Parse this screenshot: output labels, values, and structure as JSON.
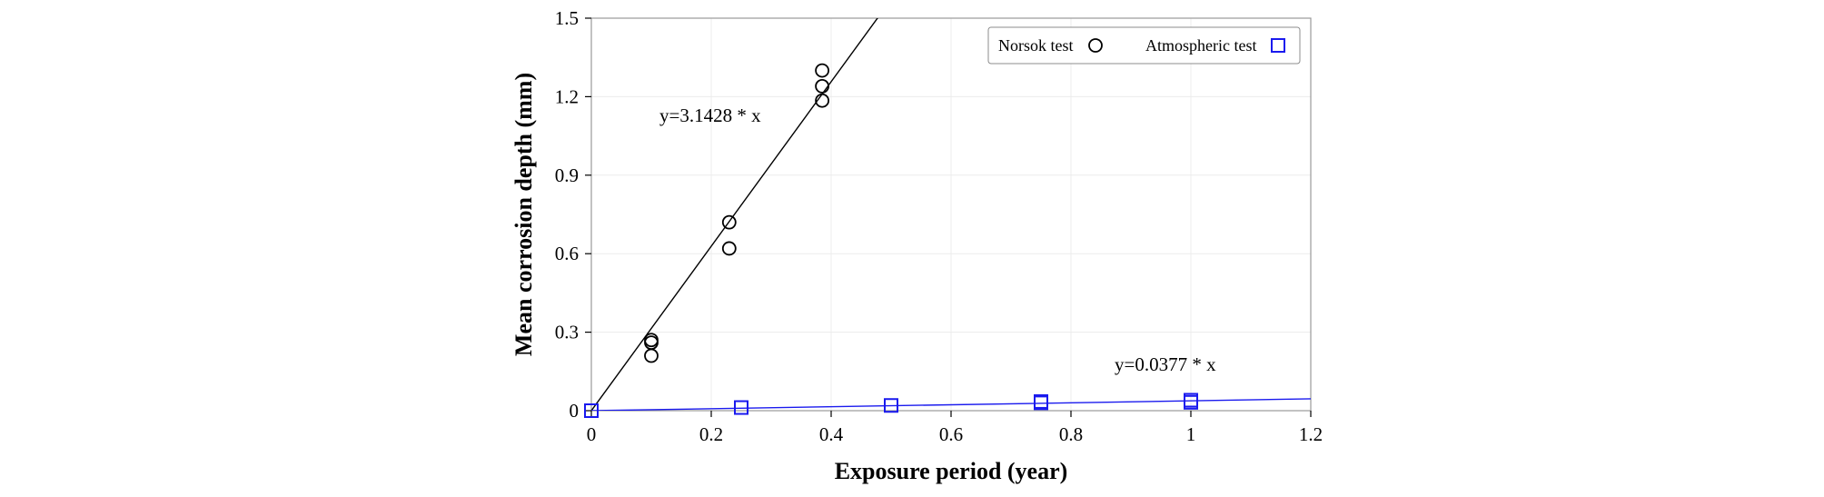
{
  "chart_data": {
    "type": "scatter",
    "xlabel": "Exposure period (year)",
    "ylabel": "Mean corrosion depth (mm)",
    "xlim": [
      0,
      1.2
    ],
    "ylim": [
      0,
      1.5
    ],
    "x_ticks": [
      0,
      0.2,
      0.4,
      0.6,
      0.8,
      1,
      1.2
    ],
    "x_tick_labels": [
      "0",
      "0.2",
      "0.4",
      "0.6",
      "0.8",
      "1",
      "1.2"
    ],
    "y_ticks": [
      0,
      0.3,
      0.6,
      0.9,
      1.2,
      1.5
    ],
    "y_tick_labels": [
      "0",
      "0.3",
      "0.6",
      "0.9",
      "1.2",
      "1.5"
    ],
    "grid": true,
    "legend_position": "top-right",
    "series": [
      {
        "name": "Norsok test",
        "marker": "circle",
        "color": "#000000",
        "points": [
          [
            0.1,
            0.27
          ],
          [
            0.1,
            0.26
          ],
          [
            0.1,
            0.21
          ],
          [
            0.23,
            0.72
          ],
          [
            0.23,
            0.62
          ],
          [
            0.385,
            1.3
          ],
          [
            0.385,
            1.24
          ],
          [
            0.385,
            1.185
          ]
        ],
        "fit": {
          "slope": 3.1428,
          "label": "y=3.1428 * x"
        }
      },
      {
        "name": "Atmospheric test",
        "marker": "square",
        "color": "#1a1aee",
        "points": [
          [
            0,
            0.0
          ],
          [
            0.25,
            0.012
          ],
          [
            0.5,
            0.02
          ],
          [
            0.75,
            0.03
          ],
          [
            0.75,
            0.035
          ],
          [
            1,
            0.032
          ],
          [
            1,
            0.04
          ]
        ],
        "fit": {
          "slope": 0.0377,
          "label": "y=0.0377 * x"
        }
      }
    ]
  }
}
